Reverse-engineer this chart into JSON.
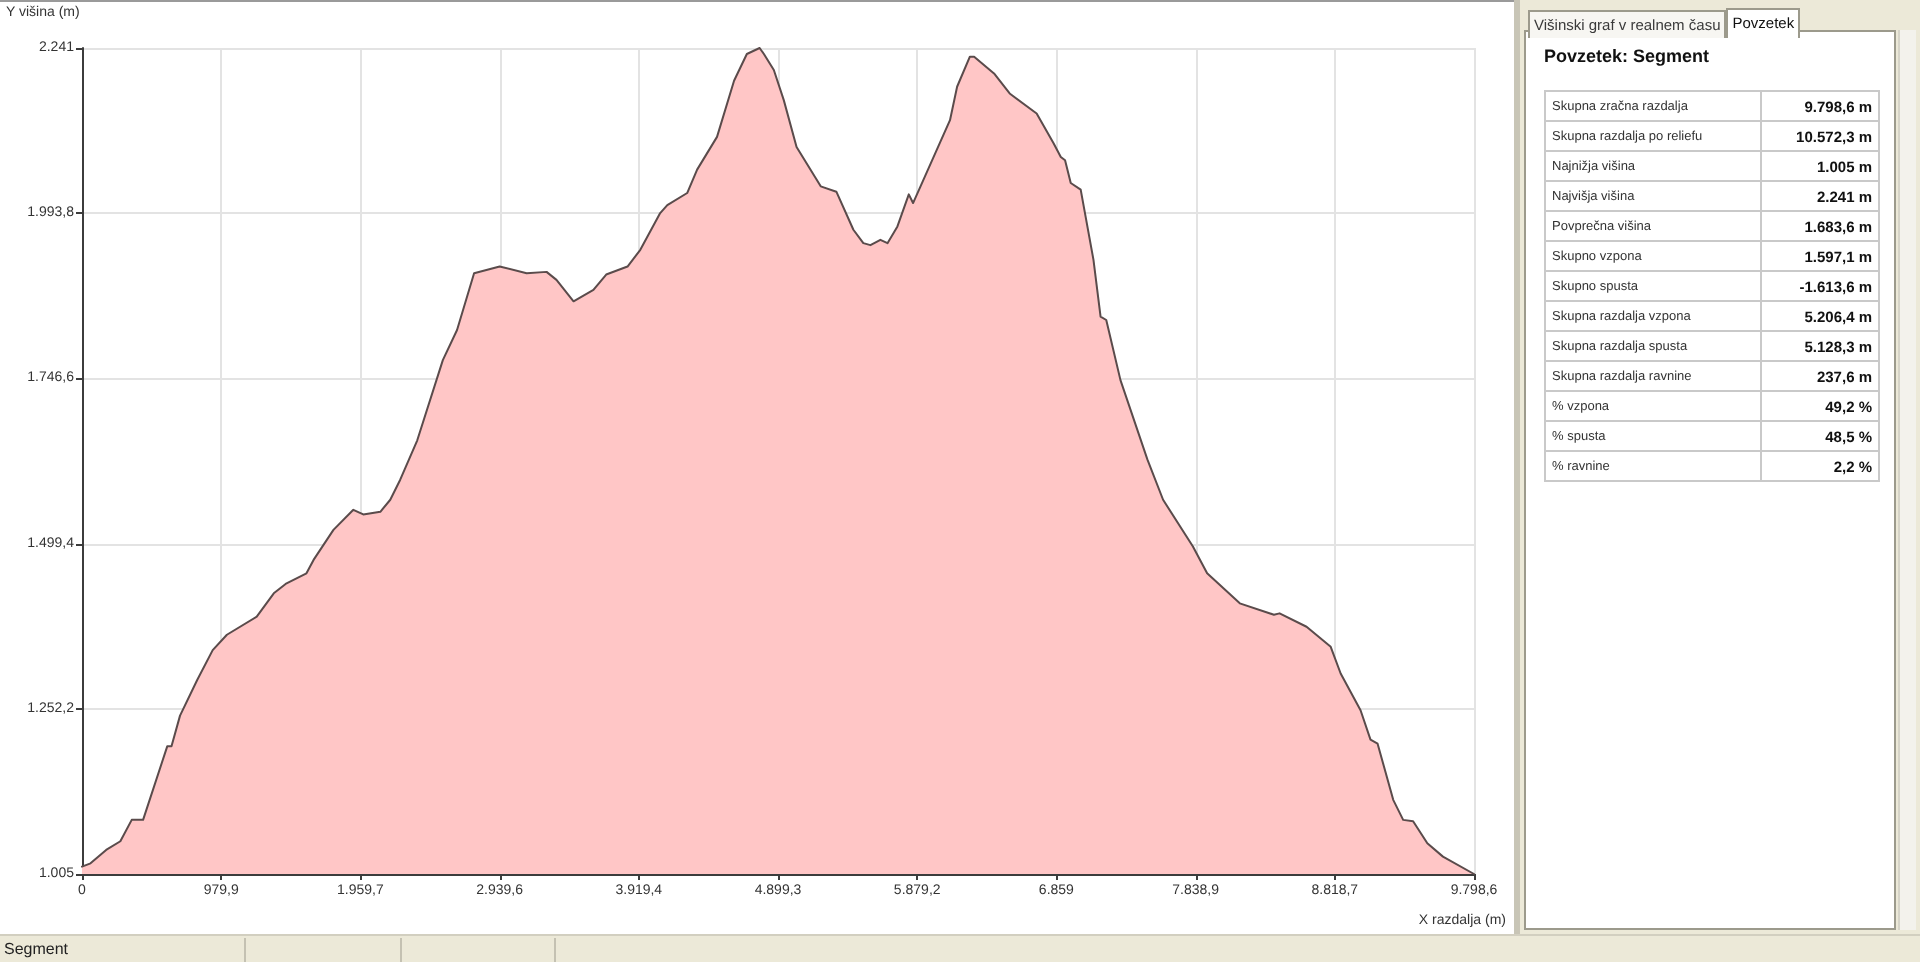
{
  "chart_data": [
    {
      "type": "area",
      "xlabel": "X razdalja (m)",
      "ylabel": "Y višina (m)",
      "x": [
        0,
        60,
        170,
        270,
        350,
        430,
        600,
        630,
        690,
        810,
        920,
        1020,
        1230,
        1350,
        1440,
        1580,
        1630,
        1770,
        1910,
        1980,
        2100,
        2170,
        2240,
        2360,
        2540,
        2640,
        2760,
        2940,
        3130,
        3270,
        3340,
        3460,
        3600,
        3690,
        3840,
        3930,
        4070,
        4120,
        4260,
        4330,
        4470,
        4590,
        4680,
        4770,
        4800,
        4870,
        4940,
        5030,
        5200,
        5310,
        5430,
        5500,
        5550,
        5620,
        5670,
        5740,
        5820,
        5850,
        6110,
        6160,
        6250,
        6280,
        6420,
        6530,
        6720,
        6840,
        6890,
        6920,
        6960,
        7030,
        7120,
        7170,
        7210,
        7310,
        7500,
        7610,
        7820,
        7920,
        8150,
        8390,
        8430,
        8620,
        8790,
        8860,
        9000,
        9070,
        9120,
        9230,
        9300,
        9370,
        9470,
        9580,
        9798.6
      ],
      "values": [
        1016,
        1021,
        1041,
        1054,
        1086,
        1086,
        1196,
        1196,
        1242,
        1295,
        1340,
        1363,
        1390,
        1425,
        1440,
        1455,
        1475,
        1520,
        1550,
        1543,
        1547,
        1565,
        1595,
        1654,
        1774,
        1819,
        1904,
        1914,
        1904,
        1906,
        1894,
        1862,
        1879,
        1902,
        1914,
        1939,
        1994,
        2006,
        2024,
        2059,
        2108,
        2192,
        2232,
        2241,
        2232,
        2208,
        2163,
        2093,
        2034,
        2026,
        1969,
        1949,
        1946,
        1954,
        1949,
        1974,
        2022,
        2009,
        2133,
        2183,
        2228,
        2228,
        2203,
        2173,
        2143,
        2098,
        2078,
        2073,
        2039,
        2029,
        1924,
        1839,
        1834,
        1744,
        1625,
        1565,
        1495,
        1455,
        1410,
        1393,
        1395,
        1375,
        1345,
        1305,
        1250,
        1206,
        1200,
        1116,
        1086,
        1084,
        1051,
        1031,
        1005
      ],
      "color": "#ffc6c6",
      "xlim": [
        0,
        9798.6
      ],
      "xticks": [
        0,
        {
          "value": 979.9,
          "label": "979,9"
        },
        {
          "value": 1959.7,
          "label": "1.959,7"
        },
        {
          "value": 2939.6,
          "label": "2.939,6"
        },
        {
          "value": 3919.4,
          "label": "3.919,4"
        },
        {
          "value": 4899.3,
          "label": "4.899,3"
        },
        {
          "value": 5879.2,
          "label": "5.879,2"
        },
        {
          "value": 6859,
          "label": "6.859"
        },
        {
          "value": 7838.9,
          "label": "7.838,9"
        },
        {
          "value": 8818.7,
          "label": "8.818,7"
        },
        {
          "value": 9798.6,
          "label": "9.798,6"
        }
      ],
      "ylim": [
        1005,
        2241
      ],
      "yticks": [
        {
          "value": 1005,
          "label": "1.005"
        },
        {
          "value": 1252.2,
          "label": "1.252,2"
        },
        {
          "value": 1499.4,
          "label": "1.499,4"
        },
        {
          "value": 1746.6,
          "label": "1.746,6"
        },
        {
          "value": 1993.8,
          "label": "1.993,8"
        },
        {
          "value": 2241,
          "label": "2.241"
        }
      ],
      "grid": true,
      "marker": "none",
      "line_style": "solid",
      "annotations": [
        "Segment"
      ]
    },
    {
      "type": "other",
      "title": "Povzetek: Segment",
      "categories": [
        "Skupna zračna razdalja",
        "Skupna razdalja po reliefu",
        "Najnižja višina",
        "Najvišja višina",
        "Povprečna višina",
        "Skupno vzpona",
        "Skupno spusta",
        "Skupna razdalja vzpona",
        "Skupna razdalja spusta",
        "Skupna razdalja ravnine",
        "% vzpona",
        "% spusta",
        "% ravnine"
      ],
      "value_labels": [
        "9.798,6 m",
        "10.572,3 m",
        "1.005 m",
        "2.241 m",
        "1.683,6 m",
        "1.597,1 m",
        "-1.613,6 m",
        "5.206,4 m",
        "5.128,3 m",
        "237,6 m",
        "49,2 %",
        "48,5 %",
        "2,2 %"
      ],
      "annotations": [
        "Višinski graf v realnem času",
        "Povzetek"
      ]
    }
  ]
}
